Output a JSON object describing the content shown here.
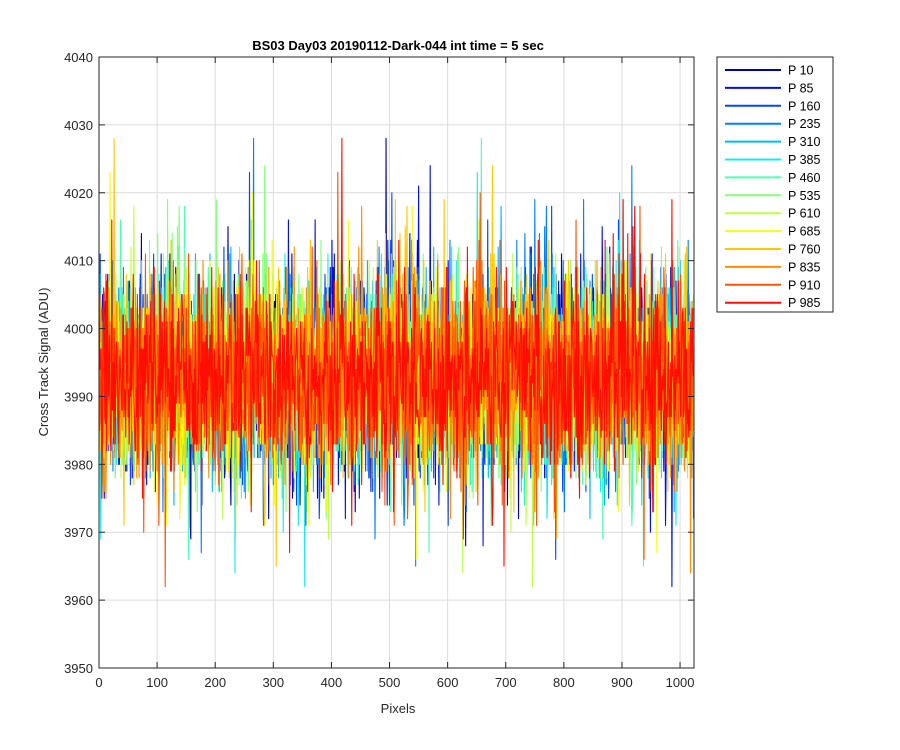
{
  "chart_data": {
    "type": "line",
    "title": "BS03 Day03 20190112-Dark-044 int time = 5 sec",
    "xlabel": "Pixels",
    "ylabel": "Cross Track Signal (ADU)",
    "xlim": [
      0,
      1024
    ],
    "ylim": [
      3950,
      4040
    ],
    "xticks": [
      0,
      100,
      200,
      300,
      400,
      500,
      600,
      700,
      800,
      900,
      1000
    ],
    "yticks": [
      3950,
      3960,
      3970,
      3980,
      3990,
      4000,
      4010,
      4020,
      4030,
      4040
    ],
    "grid": true,
    "legend_position": "outside-top-right",
    "n_points": 1024,
    "mean": 3993,
    "noise_std": 7.0,
    "observed_min": 3958,
    "observed_max": 4032,
    "series": [
      {
        "name": "P 10",
        "color": "#0000b3"
      },
      {
        "name": "P 85",
        "color": "#0011e0"
      },
      {
        "name": "P 160",
        "color": "#0047ff"
      },
      {
        "name": "P 235",
        "color": "#0080ff"
      },
      {
        "name": "P 310",
        "color": "#00b8ff"
      },
      {
        "name": "P 385",
        "color": "#14ecf0"
      },
      {
        "name": "P 460",
        "color": "#4cffb3"
      },
      {
        "name": "P 535",
        "color": "#85ff7a"
      },
      {
        "name": "P 610",
        "color": "#bfff40"
      },
      {
        "name": "P 685",
        "color": "#f5ff0a"
      },
      {
        "name": "P 760",
        "color": "#ffc800"
      },
      {
        "name": "P 835",
        "color": "#ff8f00"
      },
      {
        "name": "P 910",
        "color": "#ff5500"
      },
      {
        "name": "P 985",
        "color": "#ff0d00"
      }
    ]
  }
}
